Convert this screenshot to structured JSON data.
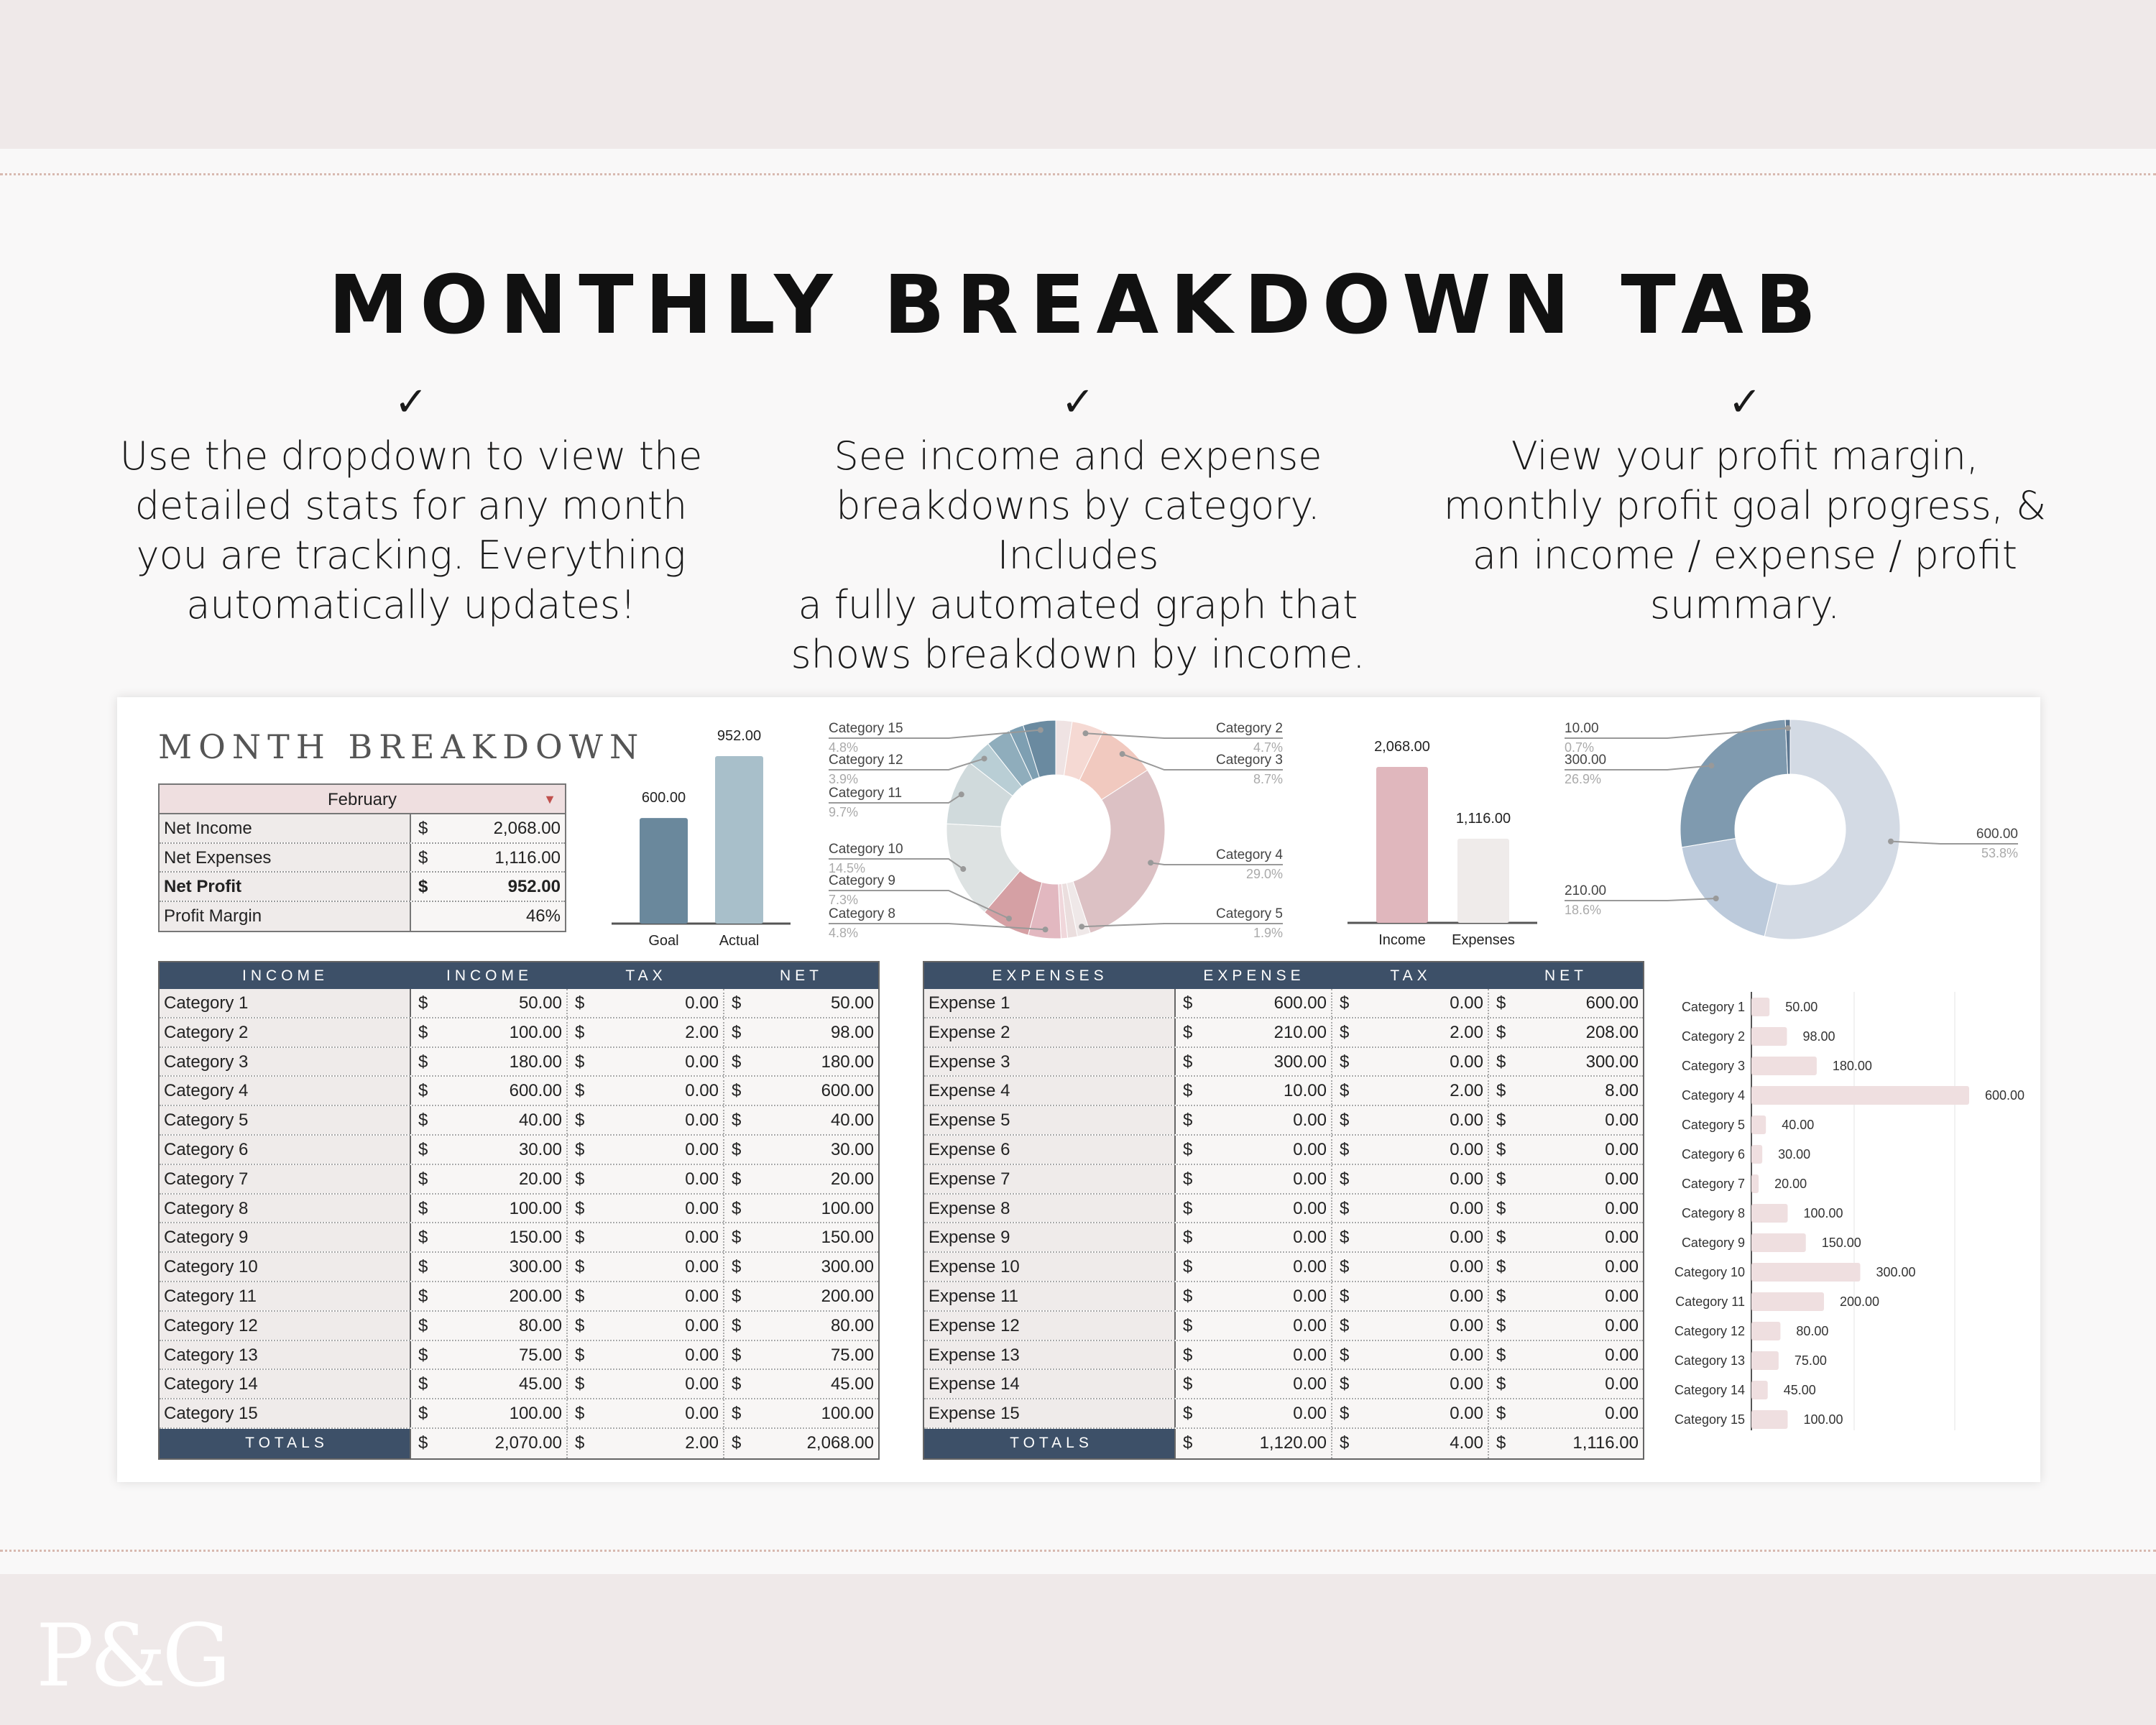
{
  "brand": {
    "logo": "P&G"
  },
  "title": "MONTHLY BREAKDOWN TAB",
  "features": [
    {
      "check": "✓",
      "lines": [
        "Use the dropdown to view the",
        "detailed stats for any month",
        "you are tracking. Everything",
        "automatically updates!"
      ]
    },
    {
      "check": "✓",
      "lines": [
        "See income and expense",
        "breakdowns by category. Includes",
        "a fully automated graph that",
        "shows breakdown by income."
      ]
    },
    {
      "check": "✓",
      "lines": [
        "View your profit margin,",
        "monthly profit goal progress, &",
        "an income / expense / profit",
        "summary."
      ]
    }
  ],
  "sheet": {
    "title": "MONTH BREAKDOWN",
    "month_dropdown": {
      "selected": "February"
    },
    "summary": [
      {
        "label": "Net Income",
        "cur": "$",
        "value": "2,068.00"
      },
      {
        "label": "Net Expenses",
        "cur": "$",
        "value": "1,116.00"
      },
      {
        "label": "Net Profit",
        "cur": "$",
        "value": "952.00"
      },
      {
        "label": "Profit Margin",
        "cur": "",
        "value": "46%"
      }
    ],
    "income_table": {
      "headers": [
        "INCOME",
        "INCOME",
        "TAX",
        "NET"
      ],
      "rows": [
        [
          "Category 1",
          "50.00",
          "0.00",
          "50.00"
        ],
        [
          "Category 2",
          "100.00",
          "2.00",
          "98.00"
        ],
        [
          "Category 3",
          "180.00",
          "0.00",
          "180.00"
        ],
        [
          "Category 4",
          "600.00",
          "0.00",
          "600.00"
        ],
        [
          "Category 5",
          "40.00",
          "0.00",
          "40.00"
        ],
        [
          "Category 6",
          "30.00",
          "0.00",
          "30.00"
        ],
        [
          "Category 7",
          "20.00",
          "0.00",
          "20.00"
        ],
        [
          "Category 8",
          "100.00",
          "0.00",
          "100.00"
        ],
        [
          "Category 9",
          "150.00",
          "0.00",
          "150.00"
        ],
        [
          "Category 10",
          "300.00",
          "0.00",
          "300.00"
        ],
        [
          "Category 11",
          "200.00",
          "0.00",
          "200.00"
        ],
        [
          "Category 12",
          "80.00",
          "0.00",
          "80.00"
        ],
        [
          "Category 13",
          "75.00",
          "0.00",
          "75.00"
        ],
        [
          "Category 14",
          "45.00",
          "0.00",
          "45.00"
        ],
        [
          "Category 15",
          "100.00",
          "0.00",
          "100.00"
        ]
      ],
      "totals": [
        "TOTALS",
        "2,070.00",
        "2.00",
        "2,068.00"
      ],
      "currency": "$"
    },
    "expense_table": {
      "headers": [
        "EXPENSES",
        "EXPENSE",
        "TAX",
        "NET"
      ],
      "rows": [
        [
          "Expense 1",
          "600.00",
          "0.00",
          "600.00"
        ],
        [
          "Expense 2",
          "210.00",
          "2.00",
          "208.00"
        ],
        [
          "Expense 3",
          "300.00",
          "0.00",
          "300.00"
        ],
        [
          "Expense 4",
          "10.00",
          "2.00",
          "8.00"
        ],
        [
          "Expense 5",
          "0.00",
          "0.00",
          "0.00"
        ],
        [
          "Expense 6",
          "0.00",
          "0.00",
          "0.00"
        ],
        [
          "Expense 7",
          "0.00",
          "0.00",
          "0.00"
        ],
        [
          "Expense 8",
          "0.00",
          "0.00",
          "0.00"
        ],
        [
          "Expense 9",
          "0.00",
          "0.00",
          "0.00"
        ],
        [
          "Expense 10",
          "0.00",
          "0.00",
          "0.00"
        ],
        [
          "Expense 11",
          "0.00",
          "0.00",
          "0.00"
        ],
        [
          "Expense 12",
          "0.00",
          "0.00",
          "0.00"
        ],
        [
          "Expense 13",
          "0.00",
          "0.00",
          "0.00"
        ],
        [
          "Expense 14",
          "0.00",
          "0.00",
          "0.00"
        ],
        [
          "Expense 15",
          "0.00",
          "0.00",
          "0.00"
        ]
      ],
      "totals": [
        "TOTALS",
        "1,120.00",
        "4.00",
        "1,116.00"
      ],
      "currency": "$"
    }
  },
  "chart_data": [
    {
      "type": "bar",
      "name": "profit-goal",
      "categories": [
        "Goal",
        "Actual"
      ],
      "values": [
        600,
        952
      ],
      "labels": [
        "600.00",
        "952.00"
      ],
      "colors": [
        "#6a889c",
        "#a8bfca"
      ]
    },
    {
      "type": "pie",
      "name": "income-by-category",
      "donut": true,
      "categories": [
        "Category 1",
        "Category 2",
        "Category 3",
        "Category 4",
        "Category 5",
        "Category 6",
        "Category 7",
        "Category 8",
        "Category 9",
        "Category 10",
        "Category 11",
        "Category 12",
        "Category 13",
        "Category 14",
        "Category 15"
      ],
      "values": [
        50,
        98,
        180,
        600,
        40,
        30,
        20,
        100,
        150,
        300,
        200,
        80,
        75,
        45,
        100
      ],
      "colors": [
        "#efe3e3",
        "#f5d9d3",
        "#f1c9bf",
        "#dcc1c4",
        "#efe8e8",
        "#ebdede",
        "#f0d7db",
        "#e2b8c0",
        "#d5a0a4",
        "#dde2e2",
        "#d0dadc",
        "#b9ced5",
        "#8fadbc",
        "#7e9fb2",
        "#6a8aa0"
      ],
      "annotations": [
        {
          "index": 14,
          "label": "Category 15",
          "pct": "4.8%",
          "side": "left"
        },
        {
          "index": 11,
          "label": "Category 12",
          "pct": "3.9%",
          "side": "left"
        },
        {
          "index": 10,
          "label": "Category 11",
          "pct": "9.7%",
          "side": "left"
        },
        {
          "index": 9,
          "label": "Category 10",
          "pct": "14.5%",
          "side": "left"
        },
        {
          "index": 8,
          "label": "Category 9",
          "pct": "7.3%",
          "side": "left"
        },
        {
          "index": 7,
          "label": "Category 8",
          "pct": "4.8%",
          "side": "left"
        },
        {
          "index": 1,
          "label": "Category 2",
          "pct": "4.7%",
          "side": "right"
        },
        {
          "index": 2,
          "label": "Category 3",
          "pct": "8.7%",
          "side": "right"
        },
        {
          "index": 3,
          "label": "Category 4",
          "pct": "29.0%",
          "side": "right"
        },
        {
          "index": 4,
          "label": "Category 5",
          "pct": "1.9%",
          "side": "right"
        }
      ]
    },
    {
      "type": "bar",
      "name": "income-vs-expenses",
      "categories": [
        "Income",
        "Expenses"
      ],
      "values": [
        2068,
        1116
      ],
      "labels": [
        "2,068.00",
        "1,116.00"
      ],
      "colors": [
        "#e0b7bd",
        "#efebea"
      ]
    },
    {
      "type": "pie",
      "name": "expense-breakdown",
      "donut": true,
      "categories": [
        "Expense 1",
        "Expense 2",
        "Expense 3",
        "Expense 4"
      ],
      "values": [
        600,
        208,
        300,
        8
      ],
      "colors": [
        "#d3dae4",
        "#bccadb",
        "#7f9aaf",
        "#5d7790"
      ],
      "annotations": [
        {
          "index": 3,
          "label": "10.00",
          "pct": "0.7%",
          "side": "left"
        },
        {
          "index": 2,
          "label": "300.00",
          "pct": "26.9%",
          "side": "left"
        },
        {
          "index": 1,
          "label": "210.00",
          "pct": "18.6%",
          "side": "left"
        },
        {
          "index": 0,
          "label": "600.00",
          "pct": "53.8%",
          "side": "right"
        }
      ]
    },
    {
      "type": "bar",
      "name": "net-income-by-category",
      "orientation": "horizontal",
      "categories": [
        "Category 1",
        "Category 2",
        "Category 3",
        "Category 4",
        "Category 5",
        "Category 6",
        "Category 7",
        "Category 8",
        "Category 9",
        "Category 10",
        "Category 11",
        "Category 12",
        "Category 13",
        "Category 14",
        "Category 15"
      ],
      "values": [
        50,
        98,
        180,
        600,
        40,
        30,
        20,
        100,
        150,
        300,
        200,
        80,
        75,
        45,
        100
      ],
      "labels": [
        "50.00",
        "98.00",
        "180.00",
        "600.00",
        "40.00",
        "30.00",
        "20.00",
        "100.00",
        "150.00",
        "300.00",
        "200.00",
        "80.00",
        "75.00",
        "45.00",
        "100.00"
      ],
      "color": "#efdfe0",
      "xlim": [
        0,
        600
      ]
    }
  ]
}
